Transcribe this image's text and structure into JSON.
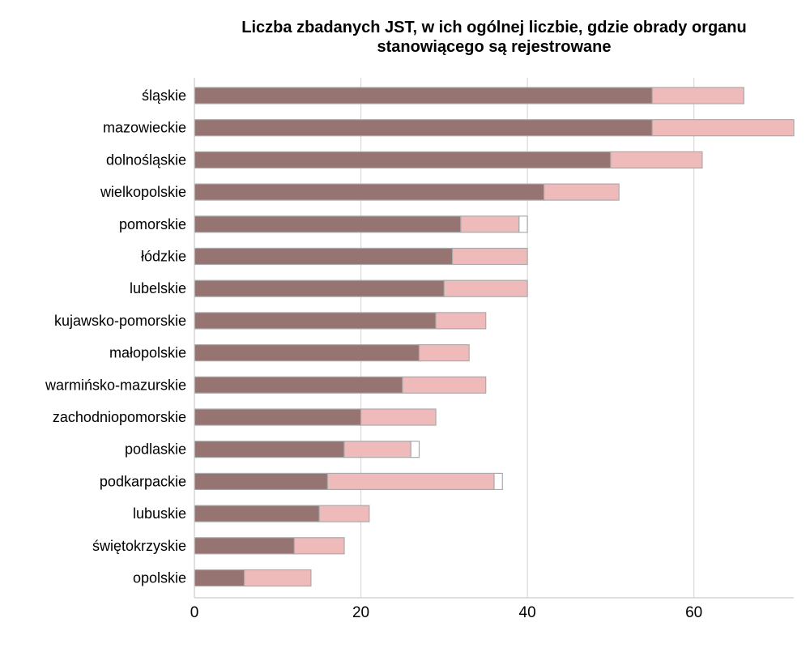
{
  "chart_data": {
    "type": "bar",
    "orientation": "horizontal",
    "stacked": true,
    "title_lines": [
      "Liczba zbadanych JST, w ich ogólnej liczbie, gdzie obrady organu",
      "stanowiącego są rejestrowane"
    ],
    "xlabel": "",
    "ylabel": "",
    "xlim": [
      0,
      72
    ],
    "x_ticks": [
      0,
      20,
      40,
      60
    ],
    "grid": "vertical",
    "legend": "none",
    "colors": {
      "registered": "#967471",
      "not_registered": "#efbbba",
      "remainder": "#ffffff",
      "bar_border": "#aaaaaa",
      "gridline": "#d9d9d9",
      "axis_line": "#cccccc"
    },
    "categories": [
      "śląskie",
      "mazowieckie",
      "dolnośląskie",
      "wielkopolskie",
      "pomorskie",
      "łódzkie",
      "lubelskie",
      "kujawsko-pomorskie",
      "małopolskie",
      "warmińsko-mazurskie",
      "zachodniopomorskie",
      "podlaskie",
      "podkarpackie",
      "lubuskie",
      "świętokrzyskie",
      "opolskie"
    ],
    "series": [
      {
        "key": "registered",
        "values": [
          55,
          55,
          50,
          42,
          32,
          31,
          30,
          29,
          27,
          25,
          20,
          18,
          16,
          15,
          12,
          6
        ]
      },
      {
        "key": "not_registered",
        "values": [
          11,
          17,
          11,
          9,
          7,
          9,
          10,
          6,
          6,
          10,
          9,
          8,
          20,
          6,
          6,
          8
        ]
      },
      {
        "key": "remainder",
        "values": [
          0,
          0,
          0,
          0,
          1,
          0,
          0,
          0,
          0,
          0,
          0,
          1,
          1,
          0,
          0,
          0
        ]
      }
    ]
  }
}
